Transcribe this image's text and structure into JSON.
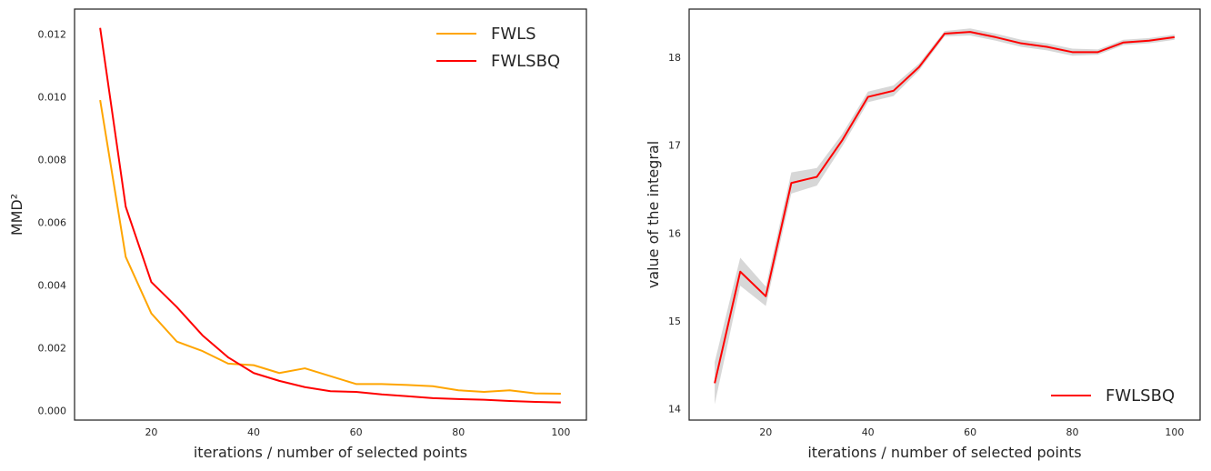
{
  "chart_data": [
    {
      "type": "line",
      "title": "",
      "xlabel": "iterations / number of selected points",
      "ylabel": "MMD²",
      "xlim": [
        5,
        105
      ],
      "ylim": [
        -0.0003,
        0.0128
      ],
      "xticks": [
        20,
        40,
        60,
        80,
        100
      ],
      "yticks": [
        0.0,
        0.002,
        0.004,
        0.006,
        0.008,
        0.01,
        0.012
      ],
      "ytick_labels": [
        "0.000",
        "0.002",
        "0.004",
        "0.006",
        "0.008",
        "0.010",
        "0.012"
      ],
      "grid": false,
      "legend_position": "top-right",
      "x": [
        10,
        15,
        20,
        25,
        30,
        35,
        40,
        45,
        50,
        55,
        60,
        65,
        70,
        75,
        80,
        85,
        90,
        95,
        100
      ],
      "series": [
        {
          "name": "FWLS",
          "color": "#FFA500",
          "values": [
            0.0099,
            0.0049,
            0.0031,
            0.0022,
            0.0019,
            0.0015,
            0.00145,
            0.0012,
            0.00135,
            0.0011,
            0.00085,
            0.00085,
            0.00082,
            0.00078,
            0.00065,
            0.0006,
            0.00065,
            0.00055,
            0.00054
          ]
        },
        {
          "name": "FWLSBQ",
          "color": "#FF0000",
          "values": [
            0.0122,
            0.0065,
            0.0041,
            0.0033,
            0.0024,
            0.0017,
            0.0012,
            0.00095,
            0.00075,
            0.00062,
            0.0006,
            0.00052,
            0.00046,
            0.0004,
            0.00037,
            0.00035,
            0.00031,
            0.00028,
            0.00026
          ]
        }
      ]
    },
    {
      "type": "line",
      "title": "",
      "xlabel": "iterations / number of selected points",
      "ylabel": "value of the integral",
      "xlim": [
        5,
        105
      ],
      "ylim": [
        13.87,
        18.55
      ],
      "xticks": [
        20,
        40,
        60,
        80,
        100
      ],
      "yticks": [
        14,
        15,
        16,
        17,
        18
      ],
      "ytick_labels": [
        "14",
        "15",
        "16",
        "17",
        "18"
      ],
      "grid": false,
      "legend_position": "bottom-right",
      "x": [
        10,
        15,
        20,
        25,
        30,
        35,
        40,
        45,
        50,
        55,
        60,
        65,
        70,
        75,
        80,
        85,
        90,
        95,
        100
      ],
      "series": [
        {
          "name": "FWLSBQ",
          "color": "#FF0000",
          "values": [
            14.29,
            15.56,
            15.28,
            16.57,
            16.64,
            17.06,
            17.55,
            17.62,
            17.89,
            18.27,
            18.29,
            18.23,
            18.16,
            18.12,
            18.06,
            18.06,
            18.17,
            18.19,
            18.23
          ],
          "band_color": "#D3D3D3",
          "band_lower": [
            14.05,
            15.4,
            15.17,
            16.45,
            16.54,
            16.99,
            17.49,
            17.56,
            17.85,
            18.24,
            18.25,
            18.19,
            18.12,
            18.08,
            18.02,
            18.03,
            18.14,
            18.16,
            18.2
          ],
          "band_upper": [
            14.53,
            15.72,
            15.39,
            16.69,
            16.74,
            17.13,
            17.61,
            17.68,
            17.93,
            18.3,
            18.33,
            18.27,
            18.2,
            18.16,
            18.1,
            18.09,
            18.2,
            18.22,
            18.26
          ]
        }
      ]
    }
  ]
}
